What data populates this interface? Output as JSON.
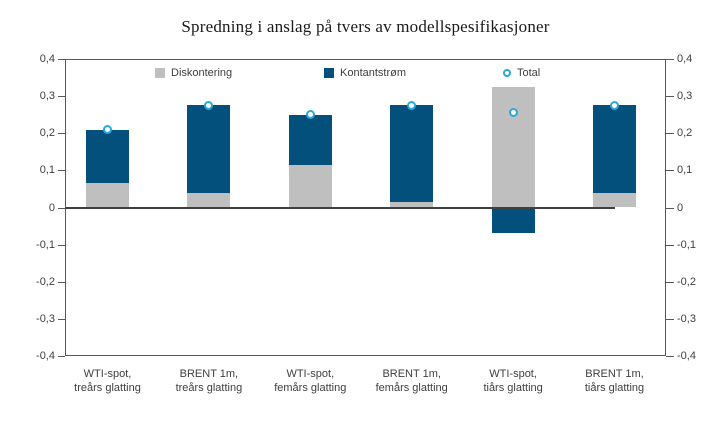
{
  "title": "Spredning i anslag på tvers av modellspesifikasjoner",
  "chart_data": {
    "type": "bar",
    "stacked": true,
    "title": "Spredning i anslag på tvers av modellspesifikasjoner",
    "categories": [
      "WTI-spot, treårs glatting",
      "BRENT 1m, treårs glatting",
      "WTI-spot, femårs glatting",
      "BRENT 1m, femårs glatting",
      "WTI-spot, tiårs glatting",
      "BRENT 1m, tiårs glatting"
    ],
    "category_lines": [
      [
        "WTI-spot,",
        "treårs glatting"
      ],
      [
        "BRENT 1m,",
        "treårs glatting"
      ],
      [
        "WTI-spot,",
        "femårs glatting"
      ],
      [
        "BRENT 1m,",
        "femårs glatting"
      ],
      [
        "WTI-spot,",
        "tiårs glatting"
      ],
      [
        "BRENT 1m,",
        "tiårs glatting"
      ]
    ],
    "series": [
      {
        "name": "Diskontering",
        "type": "bar",
        "color": "#bfbfbf",
        "values": [
          0.065,
          0.04,
          0.115,
          0.015,
          0.325,
          0.04
        ]
      },
      {
        "name": "Kontantstrøm",
        "type": "bar",
        "color": "#04507c",
        "values": [
          0.145,
          0.235,
          0.135,
          0.26,
          -0.07,
          0.235
        ]
      },
      {
        "name": "Total",
        "type": "marker",
        "color": "#29a8df",
        "values": [
          0.21,
          0.275,
          0.25,
          0.275,
          0.255,
          0.275
        ]
      }
    ],
    "ylim": [
      -0.4,
      0.4
    ],
    "y_tick_step": 0.1,
    "y_tick_labels": [
      "0,4",
      "0,3",
      "0,2",
      "0,1",
      "0",
      "-0,1",
      "-0,2",
      "-0,3",
      "-0,4"
    ],
    "grid": false,
    "legend_position": "top-inside",
    "axes_box": true,
    "dual_y_axis": true
  },
  "colors": {
    "axis": "#595959",
    "zero_line": "#404040",
    "text": "#3f3f3f",
    "background": "#ffffff"
  }
}
